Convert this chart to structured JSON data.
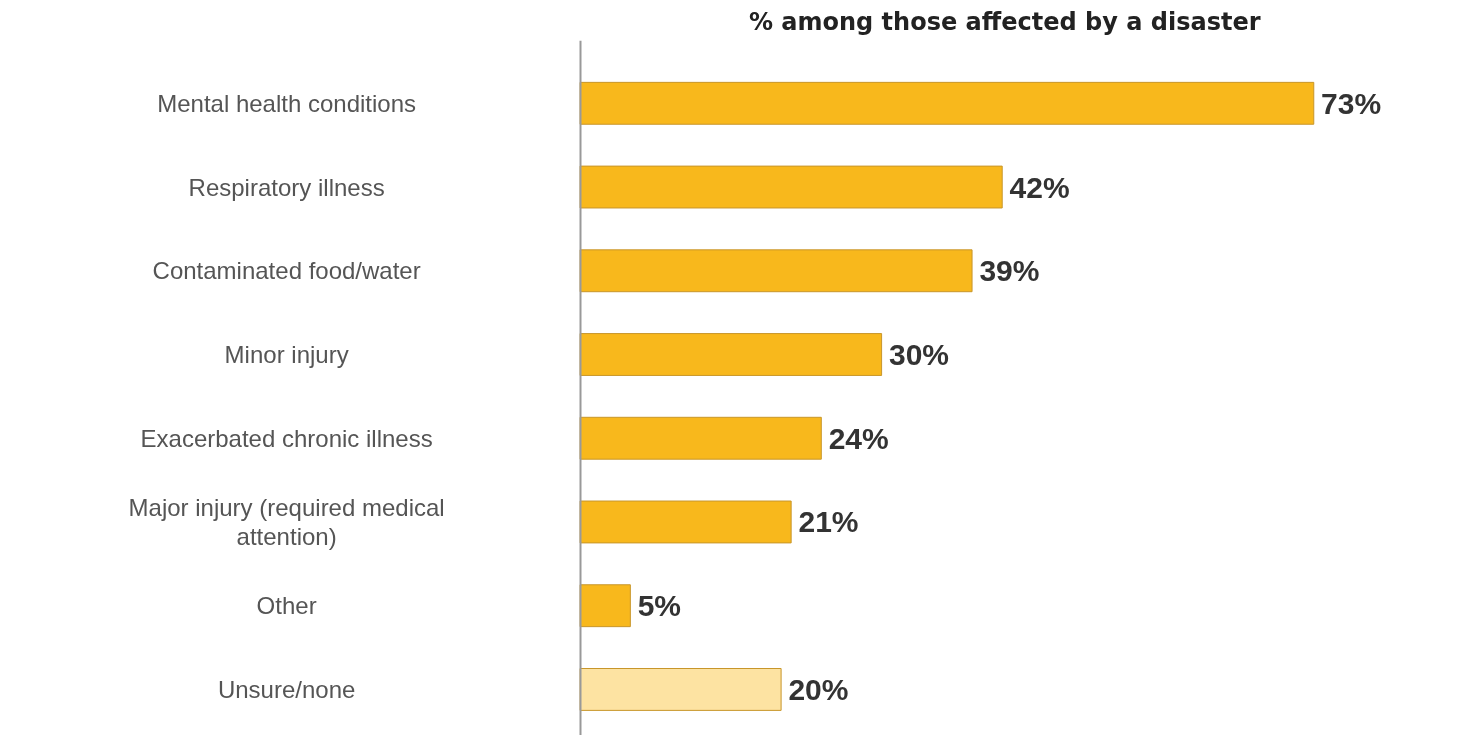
{
  "chart_data": {
    "type": "bar",
    "orientation": "horizontal",
    "title": "% among those affected by a disaster",
    "categories": [
      "Mental health conditions",
      "Respiratory illness",
      "Contaminated food/water",
      "Minor injury",
      "Exacerbated chronic illness",
      "Major injury (required medical attention)",
      "Other",
      "Unsure/none"
    ],
    "values": [
      73,
      42,
      39,
      30,
      24,
      21,
      5,
      20
    ],
    "value_labels": [
      "73%",
      "42%",
      "39%",
      "30%",
      "24%",
      "21%",
      "5%",
      "20%"
    ],
    "colors": [
      "#f8b81c",
      "#f8b81c",
      "#f8b81c",
      "#f8b81c",
      "#f8b81c",
      "#f8b81c",
      "#f8b81c",
      "#fde3a2"
    ],
    "grid": false
  }
}
